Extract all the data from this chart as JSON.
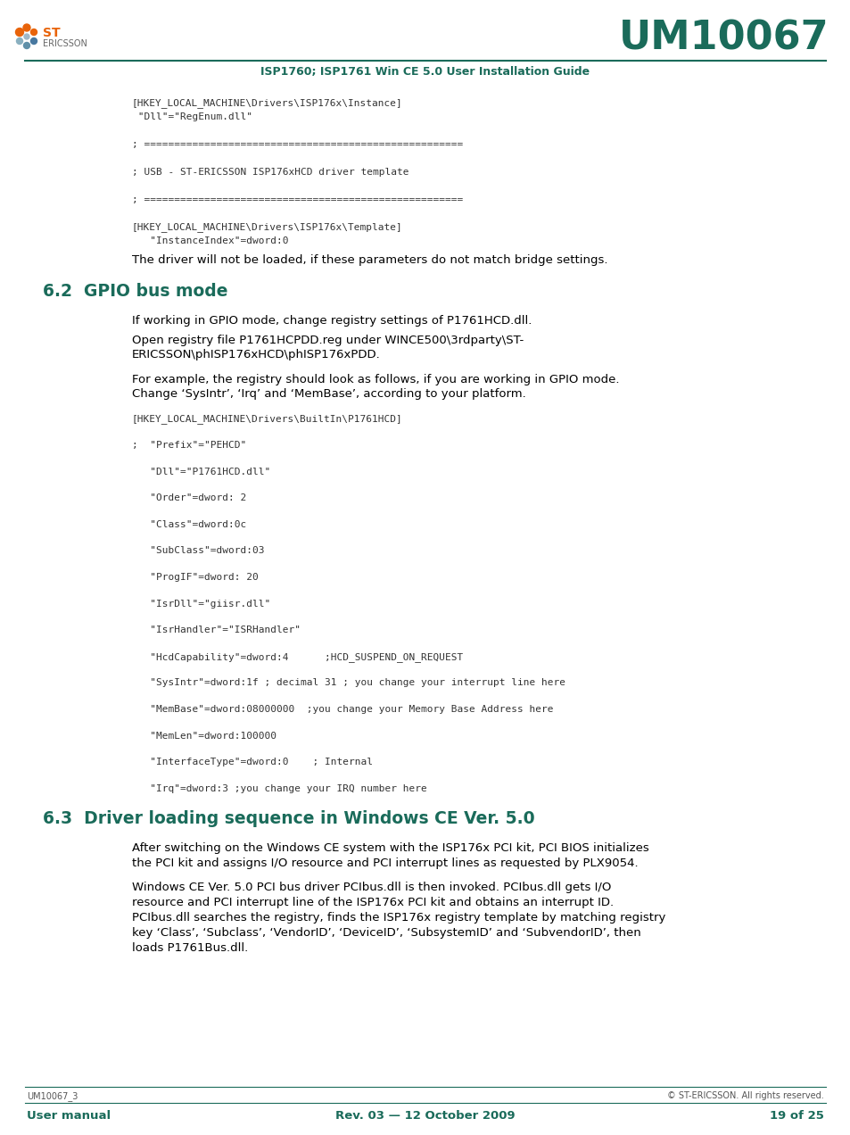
{
  "page_bg": "#ffffff",
  "header_line_color": "#1a6b5a",
  "header_title": "UM10067",
  "header_title_color": "#1a6b5a",
  "header_subtitle": "ISP1760; ISP1761 Win CE 5.0 User Installation Guide",
  "header_subtitle_color": "#1a6b5a",
  "logo_color_orange": "#e8630a",
  "code_color": "#333333",
  "body_color": "#000000",
  "section_heading_color": "#1a6b5a",
  "footer_line_color": "#1a6b5a",
  "footer_left_top": "UM10067_3",
  "footer_right_top": "© ST-ERICSSON. All rights reserved.",
  "footer_left_bottom": "User manual",
  "footer_center_bottom": "Rev. 03 — 12 October 2009",
  "footer_right_bottom": "19 of 25",
  "footer_color": "#1a6b5a",
  "footer_gray": "#555555",
  "code_lines_top": [
    "[HKEY_LOCAL_MACHINE\\Drivers\\ISP176x\\Instance]",
    " \"Dll\"=\"RegEnum.dll\"",
    "",
    "; =====================================================",
    "",
    "; USB - ST-ERICSSON ISP176xHCD driver template",
    "",
    "; =====================================================",
    "",
    "[HKEY_LOCAL_MACHINE\\Drivers\\ISP176x\\Template]",
    "   \"InstanceIndex\"=dword:0"
  ],
  "body_text_after_code_top": "The driver will not be loaded, if these parameters do not match bridge settings.",
  "section_62_title": "6.2  GPIO bus mode",
  "section_62_para1": "If working in GPIO mode, change registry settings of P1761HCD.dll.",
  "section_62_para2": "Open registry file P1761HCPDD.reg under WINCE500\\3rdparty\\ST-\nERICSSON\\phISP176xHCD\\phISP176xPDD.",
  "section_62_para3": "For example, the registry should look as follows, if you are working in GPIO mode.\nChange ‘SysIntr’, ‘Irq’ and ‘MemBase’, according to your platform.",
  "code_lines_gpio": [
    "[HKEY_LOCAL_MACHINE\\Drivers\\BuiltIn\\P1761HCD]",
    "",
    ";  \"Prefix\"=\"PEHCD\"",
    "",
    "   \"Dll\"=\"P1761HCD.dll\"",
    "",
    "   \"Order\"=dword: 2",
    "",
    "   \"Class\"=dword:0c",
    "",
    "   \"SubClass\"=dword:03",
    "",
    "   \"ProgIF\"=dword: 20",
    "",
    "   \"IsrDll\"=\"giisr.dll\"",
    "",
    "   \"IsrHandler\"=\"ISRHandler\"",
    "",
    "   \"HcdCapability\"=dword:4      ;HCD_SUSPEND_ON_REQUEST",
    "",
    "   \"SysIntr\"=dword:1f ; decimal 31 ; you change your interrupt line here",
    "",
    "   \"MemBase\"=dword:08000000  ;you change your Memory Base Address here",
    "",
    "   \"MemLen\"=dword:100000",
    "",
    "   \"InterfaceType\"=dword:0    ; Internal",
    "",
    "   \"Irq\"=dword:3 ;you change your IRQ number here"
  ],
  "section_63_title": "6.3  Driver loading sequence in Windows CE Ver. 5.0",
  "section_63_para1": "After switching on the Windows CE system with the ISP176x PCI kit, PCI BIOS initializes\nthe PCI kit and assigns I/O resource and PCI interrupt lines as requested by PLX9054.",
  "section_63_para2": "Windows CE Ver. 5.0 PCI bus driver PCIbus.dll is then invoked. PCIbus.dll gets I/O\nresource and PCI interrupt line of the ISP176x PCI kit and obtains an interrupt ID.\nPCIbus.dll searches the registry, finds the ISP176x registry template by matching registry\nkey ‘Class’, ‘Subclass’, ‘VendorID’, ‘DeviceID’, ‘SubsystemID’ and ‘SubvendorID’, then\nloads P1761Bus.dll."
}
